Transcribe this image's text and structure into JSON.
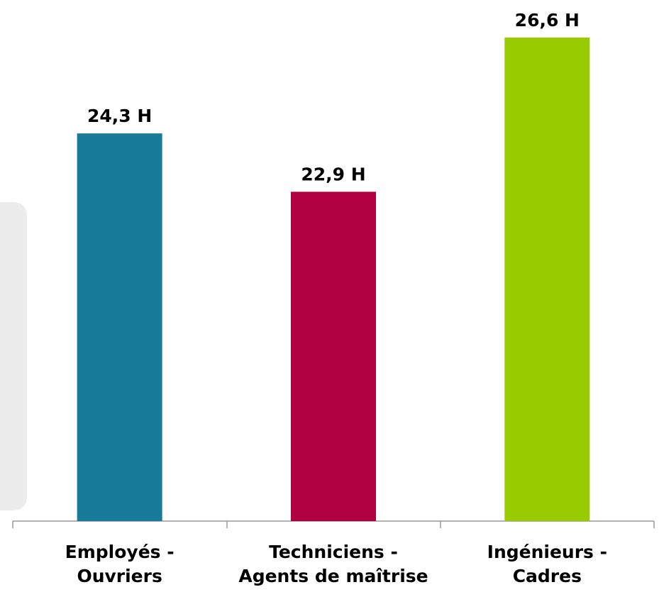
{
  "chart_data": {
    "type": "bar",
    "categories": [
      "Employés -\nOuvriers",
      "Techniciens -\nAgents de maîtrise",
      "Ingénieurs -\nCadres"
    ],
    "values": [
      24.3,
      22.9,
      26.6
    ],
    "value_labels": [
      "24,3 H",
      "22,9 H",
      "26,6 H"
    ],
    "colors": [
      "#177b99",
      "#b00042",
      "#99cc00"
    ],
    "ylim": [
      15,
      27.5
    ]
  }
}
